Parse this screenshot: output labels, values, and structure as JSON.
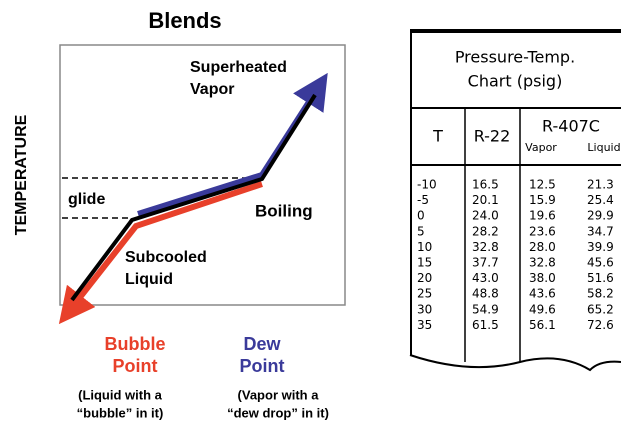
{
  "diagram": {
    "title": "Blends",
    "y_axis_label": "TEMPERATURE",
    "superheated": [
      "Superheated",
      "Vapor"
    ],
    "glide": "glide",
    "boiling": "Boiling",
    "subcooled": [
      "Subcooled",
      "Liquid"
    ],
    "bubble_point": [
      "Bubble",
      "Point"
    ],
    "bubble_note": [
      "(Liquid with a",
      "“bubble” in it)"
    ],
    "dew_point": [
      "Dew",
      "Point"
    ],
    "dew_note": [
      "(Vapor with a",
      "“dew drop” in it)"
    ]
  },
  "table": {
    "title": [
      "Pressure-Temp.",
      "Chart (psig)"
    ],
    "headers": [
      "T",
      "R-22",
      "R-407C"
    ],
    "subheaders": [
      "Vapor",
      "Liquid"
    ],
    "rows": [
      [
        "-10",
        "16.5",
        "12.5",
        "21.3"
      ],
      [
        "-5",
        "20.1",
        "15.9",
        "25.4"
      ],
      [
        "0",
        "24.0",
        "19.6",
        "29.9"
      ],
      [
        "5",
        "28.2",
        "23.6",
        "34.7"
      ],
      [
        "10",
        "32.8",
        "28.0",
        "39.9"
      ],
      [
        "15",
        "37.7",
        "32.8",
        "45.6"
      ],
      [
        "20",
        "43.0",
        "38.0",
        "51.6"
      ],
      [
        "25",
        "48.8",
        "43.6",
        "58.2"
      ],
      [
        "30",
        "54.9",
        "49.6",
        "65.2"
      ],
      [
        "35",
        "61.5",
        "56.1",
        "72.6"
      ]
    ]
  }
}
